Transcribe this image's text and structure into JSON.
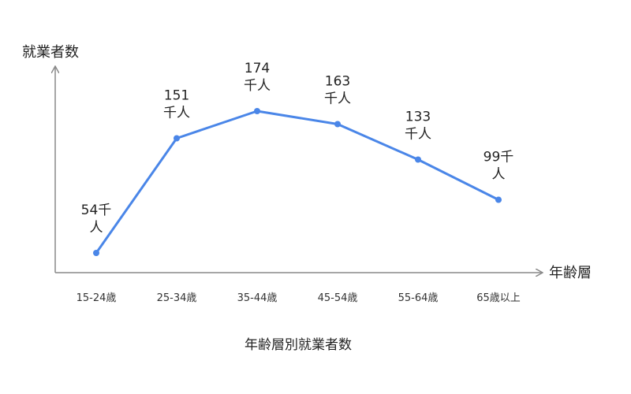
{
  "chart_data": {
    "type": "line",
    "title": "年齢層別就業者数",
    "xlabel": "年齢層",
    "ylabel": "就業者数",
    "categories": [
      "15-24歳",
      "25-34歳",
      "35-44歳",
      "45-54歳",
      "55-64歳",
      "65歳以上"
    ],
    "series": [
      {
        "values": [
          54,
          151,
          174,
          163,
          133,
          99
        ]
      }
    ],
    "data_labels": [
      [
        "54千",
        "人"
      ],
      [
        "151",
        "千人"
      ],
      [
        "174",
        "千人"
      ],
      [
        "163",
        "千人"
      ],
      [
        "133",
        "千人"
      ],
      [
        "99千",
        "人"
      ]
    ],
    "ylim": [
      40,
      180
    ],
    "grid": false,
    "colors": {
      "line": "#4a86e8",
      "axis": "#888888"
    }
  }
}
